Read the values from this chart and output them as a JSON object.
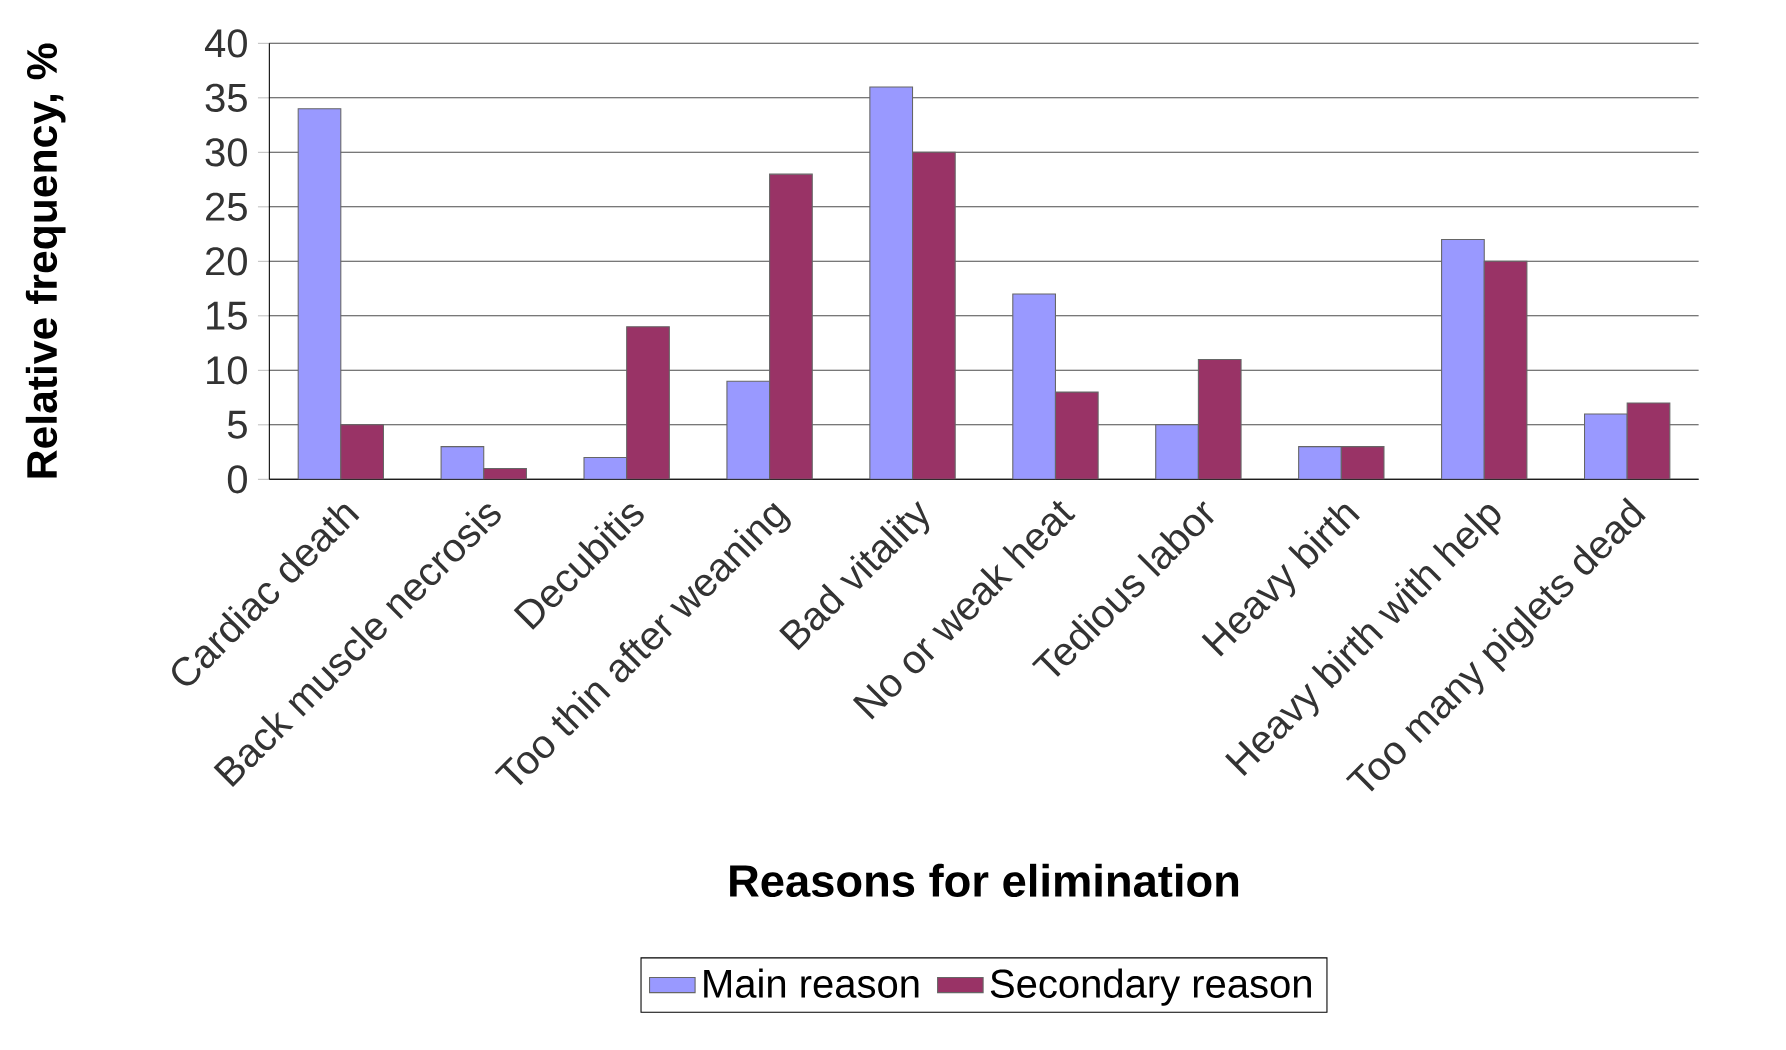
{
  "chart_data": {
    "type": "bar",
    "xlabel": "Reasons for elimination",
    "ylabel": "Relative frequency, %",
    "categories": [
      "Cardiac death",
      "Back muscle necrosis",
      "Decubitis",
      "Too thin after weaning",
      "Bad vitality",
      "No or weak heat",
      "Tedious labor",
      "Heavy birth",
      "Heavy birth with help",
      "Too many piglets dead"
    ],
    "series": [
      {
        "name": "Main reason",
        "color": "#9999ff",
        "values": [
          34,
          3,
          2,
          9,
          36,
          17,
          5,
          3,
          22,
          6
        ]
      },
      {
        "name": "Secondary reason",
        "color": "#993366",
        "values": [
          5,
          1,
          14,
          28,
          30,
          8,
          11,
          3,
          20,
          7
        ]
      }
    ],
    "ylim": [
      0,
      40
    ],
    "yticks": [
      0,
      5,
      10,
      15,
      20,
      25,
      30,
      35,
      40
    ],
    "grid": "y",
    "legend": "bottom"
  }
}
